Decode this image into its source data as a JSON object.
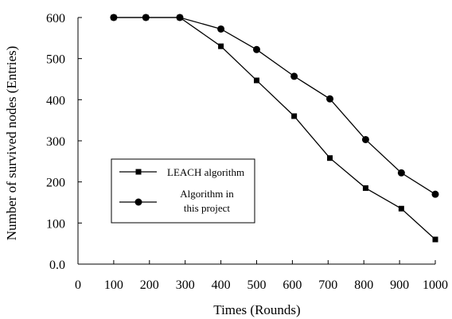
{
  "chart_data": {
    "type": "line",
    "xlabel": "Times (Rounds)",
    "ylabel": "Number of survived nodes (Entries)",
    "xlim": [
      0,
      1000
    ],
    "ylim": [
      0,
      600
    ],
    "x_ticks": [
      "0",
      "100",
      "200",
      "300",
      "400",
      "500",
      "600",
      "700",
      "800",
      "900",
      "1000"
    ],
    "y_ticks": [
      "0.0",
      "100",
      "200",
      "300",
      "400",
      "500",
      "600"
    ],
    "grid": false,
    "legend_position": "left-center",
    "series": [
      {
        "name": "LEACH algorithm",
        "marker": "square",
        "x": [
          100,
          190,
          285,
          400,
          500,
          605,
          705,
          805,
          905,
          1000
        ],
        "y": [
          600,
          600,
          600,
          530,
          447,
          360,
          258,
          185,
          135,
          60
        ]
      },
      {
        "name": "Algorithm in this project",
        "name_lines": [
          "Algorithm in",
          "this project"
        ],
        "marker": "circle",
        "x": [
          100,
          190,
          285,
          400,
          500,
          605,
          705,
          805,
          905,
          1000
        ],
        "y": [
          600,
          600,
          600,
          572,
          522,
          457,
          402,
          303,
          222,
          170
        ]
      }
    ]
  }
}
